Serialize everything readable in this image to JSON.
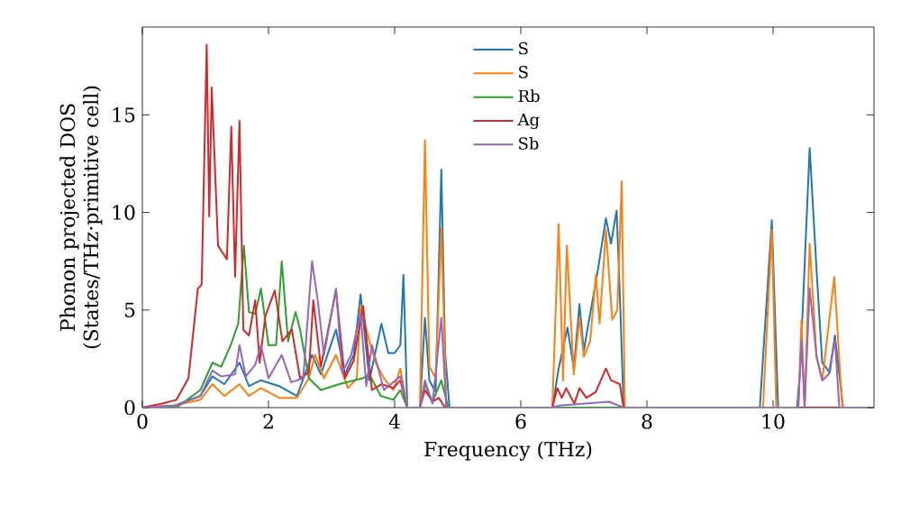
{
  "chart_data": {
    "type": "line",
    "xlabel": "Frequency (THz)",
    "ylabel": "Phonon projected DOS (States/THz·primitive cell)",
    "xlim": [
      0,
      11.6
    ],
    "ylim": [
      0,
      19.5
    ],
    "xticks": [
      0,
      2,
      4,
      6,
      8,
      10
    ],
    "yticks": [
      0,
      5,
      10,
      15
    ],
    "legend": "top",
    "grid": false,
    "marker": "none",
    "line_style": "solid",
    "series": [
      {
        "name": "S",
        "color": "#1f77b4",
        "x": [
          0,
          0.5,
          0.92,
          1.11,
          1.3,
          1.54,
          1.69,
          1.88,
          2.17,
          2.45,
          2.69,
          2.83,
          3.07,
          3.21,
          3.35,
          3.46,
          3.52,
          3.6,
          3.79,
          3.9,
          4.0,
          4.09,
          4.14,
          4.2,
          4.4,
          4.48,
          4.55,
          4.65,
          4.74,
          4.8,
          4.87,
          6.5,
          6.6,
          6.74,
          6.84,
          6.93,
          7.0,
          7.04,
          7.22,
          7.35,
          7.43,
          7.52,
          7.58,
          7.63,
          9.79,
          9.98,
          10.08,
          10.38,
          10.43,
          10.58,
          10.69,
          10.78,
          10.9,
          10.98,
          11.11,
          11.5
        ],
        "values": [
          0,
          0.1,
          0.6,
          1.6,
          1.2,
          2.3,
          1.1,
          1.4,
          1.1,
          0.6,
          2.7,
          1.7,
          4.0,
          1.7,
          2.7,
          5.8,
          3.9,
          1.4,
          4.3,
          2.8,
          2.8,
          3.2,
          6.8,
          0,
          0,
          4.6,
          1.4,
          0.8,
          12.2,
          2.8,
          0,
          0,
          2.0,
          4.1,
          2.0,
          5.3,
          2.9,
          3.7,
          7.0,
          9.7,
          8.4,
          10.1,
          4.9,
          0,
          0,
          9.6,
          0,
          0,
          2.0,
          13.3,
          7.0,
          2.3,
          1.8,
          3.7,
          0,
          0
        ]
      },
      {
        "name": "S",
        "color": "#ff7f0e",
        "x": [
          0,
          0.5,
          0.92,
          1.11,
          1.3,
          1.54,
          1.69,
          1.88,
          2.17,
          2.45,
          2.64,
          2.74,
          2.88,
          3.07,
          3.26,
          3.4,
          3.46,
          3.6,
          3.7,
          3.83,
          3.98,
          4.09,
          4.2,
          4.4,
          4.48,
          4.55,
          4.65,
          4.74,
          4.82,
          6.5,
          6.6,
          6.67,
          6.73,
          6.84,
          6.93,
          7.0,
          7.1,
          7.19,
          7.25,
          7.35,
          7.45,
          7.53,
          7.6,
          7.65,
          9.84,
          9.98,
          10.05,
          10.4,
          10.45,
          10.5,
          10.58,
          10.69,
          10.78,
          10.97,
          11.07,
          11.1,
          11.5
        ],
        "values": [
          0,
          0.1,
          0.4,
          1.2,
          0.6,
          1.2,
          0.6,
          1.0,
          0.5,
          0.5,
          1.5,
          2.7,
          1.5,
          2.7,
          1.0,
          1.5,
          5.2,
          3.4,
          2.3,
          1.5,
          0.9,
          2.0,
          0,
          0,
          13.7,
          2.1,
          1.5,
          9.2,
          0,
          0,
          9.4,
          1.4,
          8.3,
          1.7,
          4.6,
          2.6,
          3.4,
          6.8,
          4.3,
          9.1,
          4.5,
          5.0,
          11.6,
          0,
          0,
          9.1,
          0,
          0,
          4.5,
          0,
          8.4,
          2.6,
          1.4,
          6.7,
          1.4,
          0,
          0
        ]
      },
      {
        "name": "Rb",
        "color": "#2ca02c",
        "x": [
          0,
          0.54,
          0.92,
          1.11,
          1.25,
          1.4,
          1.52,
          1.61,
          1.69,
          1.79,
          1.88,
          2.0,
          2.12,
          2.21,
          2.31,
          2.43,
          2.5,
          2.64,
          2.83,
          3.12,
          3.49,
          3.6,
          3.78,
          3.98,
          4.09,
          4.2,
          4.4,
          4.48,
          4.6,
          4.74,
          4.85,
          11.5
        ],
        "values": [
          0,
          0,
          0.9,
          2.3,
          2.1,
          3.2,
          4.3,
          8.3,
          4.9,
          4.8,
          6.1,
          3.2,
          3.2,
          7.5,
          3.4,
          4.9,
          4.0,
          1.5,
          0.9,
          1.2,
          1.5,
          1.7,
          0.6,
          0.4,
          0.9,
          0,
          0,
          1.2,
          0.3,
          1.4,
          0,
          0
        ]
      },
      {
        "name": "Ag",
        "color": "#d62728",
        "x": [
          0,
          0.3,
          0.54,
          0.73,
          0.88,
          0.94,
          1.02,
          1.06,
          1.1,
          1.2,
          1.34,
          1.41,
          1.47,
          1.54,
          1.6,
          1.69,
          1.79,
          1.86,
          1.95,
          2.1,
          2.22,
          2.37,
          2.5,
          2.64,
          2.71,
          2.83,
          3.07,
          3.21,
          3.35,
          3.5,
          3.64,
          3.79,
          3.98,
          4.09,
          4.2,
          4.4,
          4.48,
          4.6,
          4.7,
          4.8,
          6.5,
          6.58,
          6.65,
          6.72,
          6.85,
          6.93,
          7.04,
          7.19,
          7.35,
          7.43,
          7.57,
          7.63,
          11.5
        ],
        "values": [
          0,
          0.2,
          0.4,
          1.5,
          6.1,
          6.3,
          18.6,
          9.8,
          16.4,
          8.3,
          7.6,
          14.4,
          6.7,
          14.7,
          4.0,
          3.7,
          5.5,
          2.3,
          4.7,
          6.0,
          3.4,
          4.0,
          1.5,
          1.8,
          5.5,
          2.1,
          6.0,
          1.5,
          2.4,
          5.2,
          0.9,
          1.2,
          1.0,
          1.4,
          0,
          0,
          0.9,
          0.3,
          0.5,
          0,
          0,
          1.0,
          0.5,
          1.0,
          0.2,
          1.0,
          0.5,
          0.8,
          2.0,
          1.4,
          1.2,
          0,
          0
        ]
      },
      {
        "name": "Sb",
        "color": "#9467bd",
        "x": [
          0,
          0.54,
          0.92,
          1.11,
          1.25,
          1.47,
          1.54,
          1.64,
          1.79,
          1.88,
          2.0,
          2.21,
          2.36,
          2.55,
          2.69,
          2.78,
          2.88,
          3.07,
          3.17,
          3.31,
          3.46,
          3.55,
          3.64,
          3.83,
          4.09,
          4.2,
          4.4,
          4.48,
          4.6,
          4.74,
          4.82,
          6.5,
          6.6,
          7.0,
          7.4,
          7.63,
          10.4,
          10.45,
          10.5,
          10.58,
          10.69,
          10.78,
          10.88,
          10.98,
          11.05,
          11.5
        ],
        "values": [
          0,
          0.1,
          0.6,
          1.9,
          1.6,
          1.7,
          3.2,
          1.6,
          2.2,
          3.2,
          1.5,
          2.7,
          1.3,
          1.5,
          7.5,
          5.5,
          2.7,
          6.1,
          1.8,
          2.7,
          4.8,
          1.1,
          3.2,
          0.9,
          1.6,
          0,
          0,
          1.4,
          0.2,
          4.6,
          0,
          0,
          0.1,
          0.2,
          0.3,
          0,
          0,
          3.5,
          0,
          6.1,
          2.6,
          1.4,
          1.7,
          3.5,
          0,
          0
        ]
      }
    ]
  }
}
